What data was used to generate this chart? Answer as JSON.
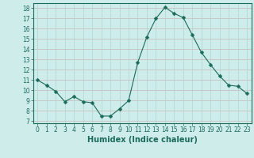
{
  "x": [
    0,
    1,
    2,
    3,
    4,
    5,
    6,
    7,
    8,
    9,
    10,
    11,
    12,
    13,
    14,
    15,
    16,
    17,
    18,
    19,
    20,
    21,
    22,
    23
  ],
  "y": [
    11.0,
    10.5,
    9.9,
    8.9,
    9.4,
    8.9,
    8.8,
    7.5,
    7.5,
    8.2,
    9.0,
    12.7,
    15.2,
    17.0,
    18.1,
    17.5,
    17.1,
    15.4,
    13.7,
    12.5,
    11.4,
    10.5,
    10.4,
    9.7
  ],
  "line_color": "#1a6b5a",
  "marker": "D",
  "marker_size": 2.5,
  "bg_color": "#ceecea",
  "hgrid_color": "#c8b8b8",
  "vgrid_color": "#aed4d1",
  "xlabel": "Humidex (Indice chaleur)",
  "xlim": [
    -0.5,
    23.5
  ],
  "ylim": [
    6.8,
    18.5
  ],
  "yticks": [
    7,
    8,
    9,
    10,
    11,
    12,
    13,
    14,
    15,
    16,
    17,
    18
  ],
  "xticks": [
    0,
    1,
    2,
    3,
    4,
    5,
    6,
    7,
    8,
    9,
    10,
    11,
    12,
    13,
    14,
    15,
    16,
    17,
    18,
    19,
    20,
    21,
    22,
    23
  ],
  "xlabel_fontsize": 7,
  "tick_fontsize": 5.5,
  "axis_color": "#1a6b5a"
}
